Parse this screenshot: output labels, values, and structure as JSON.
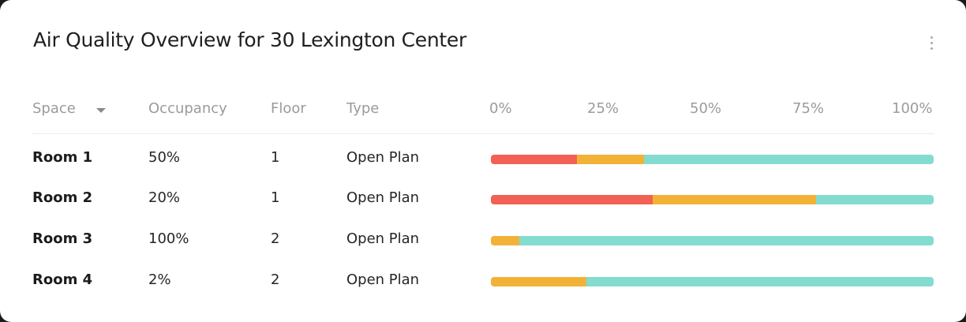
{
  "card": {
    "title": "Air Quality Overview for 30 Lexington Center"
  },
  "table": {
    "headers": {
      "space": "Space",
      "occupancy": "Occupancy",
      "floor": "Floor",
      "type": "Type"
    },
    "scale_ticks": [
      "0%",
      "25%",
      "50%",
      "75%",
      "100%"
    ],
    "rows": [
      {
        "space": "Room 1",
        "occupancy": "50%",
        "floor": "1",
        "type": "Open Plan"
      },
      {
        "space": "Room 2",
        "occupancy": "20%",
        "floor": "1",
        "type": "Open Plan"
      },
      {
        "space": "Room 3",
        "occupancy": "100%",
        "floor": "2",
        "type": "Open Plan"
      },
      {
        "space": "Room 4",
        "occupancy": "2%",
        "floor": "2",
        "type": "Open Plan"
      }
    ]
  },
  "icons": {
    "menu": "more-vertical-icon",
    "sort": "caret-down-icon"
  },
  "colors": {
    "poor": "#f26153",
    "moderate": "#f2b238",
    "good": "#84dbd0"
  },
  "chart_data": {
    "type": "bar",
    "orientation": "horizontal",
    "stacked": true,
    "categories": [
      "Room 1",
      "Room 2",
      "Room 3",
      "Room 4"
    ],
    "xlim": [
      0,
      100
    ],
    "x_ticks": [
      "0%",
      "25%",
      "50%",
      "75%",
      "100%"
    ],
    "series": [
      {
        "color": "#f26153",
        "values": [
          19.5,
          36.5,
          0,
          0
        ]
      },
      {
        "color": "#f2b238",
        "values": [
          15,
          37,
          6.5,
          21.5
        ]
      },
      {
        "color": "#84dbd0",
        "values": [
          65.5,
          26.5,
          93.5,
          78.5
        ]
      }
    ]
  }
}
